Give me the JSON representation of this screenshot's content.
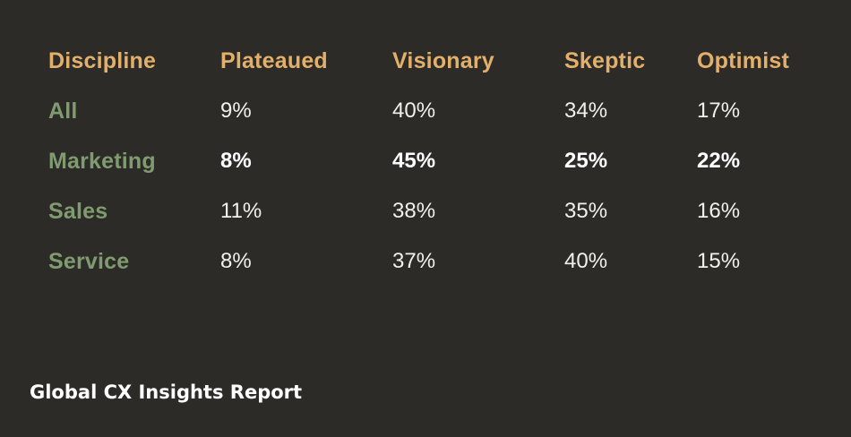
{
  "colors": {
    "background": "#2d2b28",
    "header_text": "#e2b06a",
    "row_label_text": "#7f9b6f",
    "value_text": "#f2f0ea",
    "footer_text": "#ffffff"
  },
  "footer": {
    "title": "Global CX Insights Report"
  },
  "chart_data": {
    "type": "table",
    "columns": [
      "Discipline",
      "Plateaued",
      "Visionary",
      "Skeptic",
      "Optimist"
    ],
    "rows": [
      {
        "label": "All",
        "values": [
          "9%",
          "40%",
          "34%",
          "17%"
        ]
      },
      {
        "label": "Marketing",
        "values": [
          "8%",
          "45%",
          "25%",
          "22%"
        ],
        "emphasized": true
      },
      {
        "label": "Sales",
        "values": [
          "11%",
          "38%",
          "35%",
          "16%"
        ]
      },
      {
        "label": "Service",
        "values": [
          "8%",
          "37%",
          "40%",
          "15%"
        ]
      }
    ]
  }
}
